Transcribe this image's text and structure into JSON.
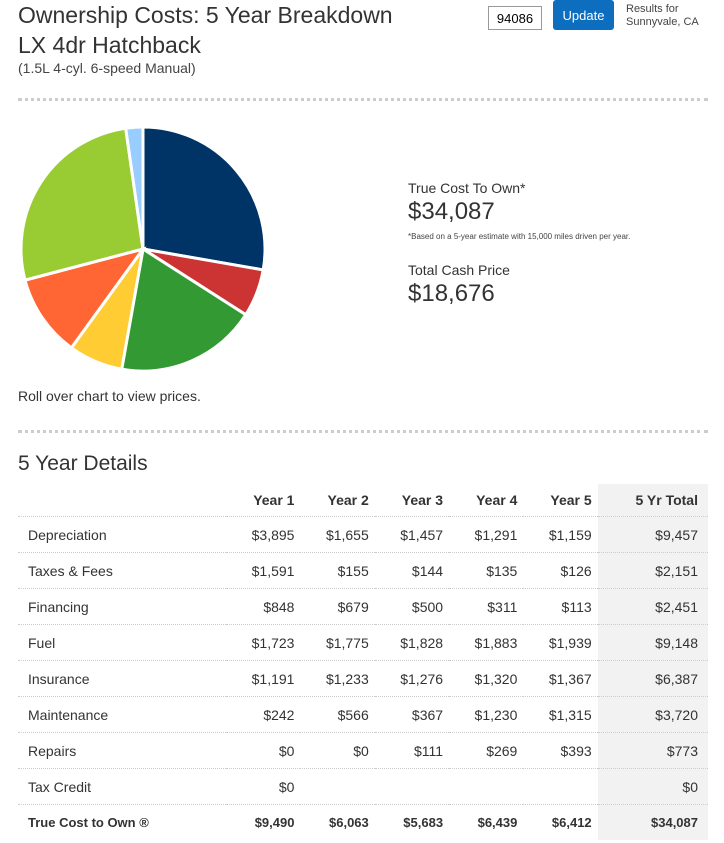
{
  "header": {
    "title": "Ownership Costs: 5 Year Breakdown",
    "model": "LX 4dr Hatchback",
    "spec": "(1.5L 4-cyl. 6-speed Manual)",
    "zip": "94086",
    "update_label": "Update",
    "results_line1": "Results for",
    "results_line2": "Sunnyvale, CA"
  },
  "summary": {
    "tco_label": "True Cost To Own*",
    "tco_value": "$34,087",
    "note": "*Based on a 5-year estimate with 15,000 miles driven per year.",
    "cash_label": "Total Cash Price",
    "cash_value": "$18,676",
    "hint": "Roll over chart to view prices."
  },
  "chart_data": {
    "type": "pie",
    "slices": [
      {
        "name": "Depreciation",
        "value": 9457,
        "color": "#003366"
      },
      {
        "name": "Taxes & Fees",
        "value": 2151,
        "color": "#cc3333"
      },
      {
        "name": "Insurance",
        "value": 6387,
        "color": "#339933"
      },
      {
        "name": "Financing",
        "value": 2451,
        "color": "#ffcc33"
      },
      {
        "name": "Maintenance",
        "value": 3720,
        "color": "#ff6633"
      },
      {
        "name": "Fuel",
        "value": 9148,
        "color": "#99cc33"
      },
      {
        "name": "Repairs",
        "value": 773,
        "color": "#99ccff"
      }
    ]
  },
  "details": {
    "title": "5 Year Details",
    "headers": [
      "",
      "Year 1",
      "Year 2",
      "Year 3",
      "Year 4",
      "Year 5",
      "5 Yr Total"
    ],
    "rows": [
      [
        "Depreciation",
        "$3,895",
        "$1,655",
        "$1,457",
        "$1,291",
        "$1,159",
        "$9,457"
      ],
      [
        "Taxes & Fees",
        "$1,591",
        "$155",
        "$144",
        "$135",
        "$126",
        "$2,151"
      ],
      [
        "Financing",
        "$848",
        "$679",
        "$500",
        "$311",
        "$113",
        "$2,451"
      ],
      [
        "Fuel",
        "$1,723",
        "$1,775",
        "$1,828",
        "$1,883",
        "$1,939",
        "$9,148"
      ],
      [
        "Insurance",
        "$1,191",
        "$1,233",
        "$1,276",
        "$1,320",
        "$1,367",
        "$6,387"
      ],
      [
        "Maintenance",
        "$242",
        "$566",
        "$367",
        "$1,230",
        "$1,315",
        "$3,720"
      ],
      [
        "Repairs",
        "$0",
        "$0",
        "$111",
        "$269",
        "$393",
        "$773"
      ],
      [
        "Tax Credit",
        "$0",
        "",
        "",
        "",
        "",
        "$0"
      ]
    ],
    "total": [
      "True Cost to Own ®",
      "$9,490",
      "$6,063",
      "$5,683",
      "$6,439",
      "$6,412",
      "$34,087"
    ]
  }
}
